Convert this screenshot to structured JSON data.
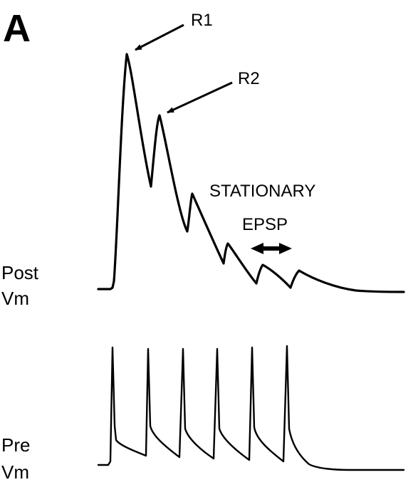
{
  "panel_letter": "A",
  "labels": {
    "r1": "R1",
    "r2": "R2",
    "stationary_line1": "STATIONARY",
    "stationary_line2": "EPSP",
    "post_line1": "Post",
    "post_line2": "Vm",
    "pre_line1": "Pre",
    "pre_line2": "Vm"
  }
}
